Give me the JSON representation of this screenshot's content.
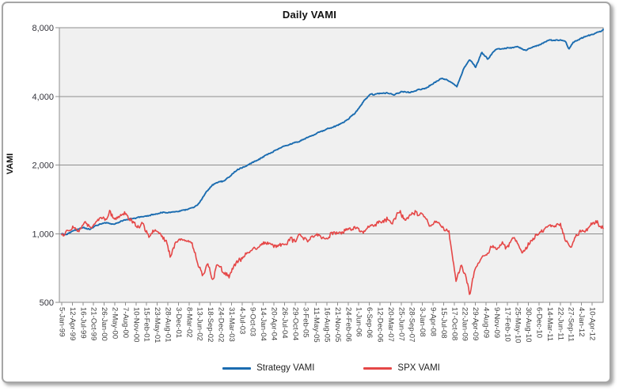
{
  "frame": {
    "background": "#ffffff",
    "border_color": "#a6a6a6"
  },
  "chart_data": {
    "type": "line",
    "title": "Daily VAMI",
    "xlabel": "",
    "ylabel": "VAMI",
    "y_scale": "log2",
    "ylim": [
      500,
      8000
    ],
    "y_ticks": [
      {
        "value": 8000,
        "label": "8,000"
      },
      {
        "value": 4000,
        "label": "4,000"
      },
      {
        "value": 2000,
        "label": "2,000"
      },
      {
        "value": 1000,
        "label": "1,000"
      },
      {
        "value": 500,
        "label": "500"
      }
    ],
    "x_tick_labels": [
      "5-Jan-99",
      "12-Apr-99",
      "16-Jul-99",
      "21-Oct-99",
      "26-Jan-00",
      "2-May-00",
      "7-Aug-00",
      "10-Nov-00",
      "15-Feb-01",
      "23-May-01",
      "28-Aug-01",
      "3-Dec-01",
      "8-Mar-02",
      "13-Jun-02",
      "18-Sep-02",
      "24-Dec-02",
      "31-Mar-03",
      "4-Jul-03",
      "9-Oct-03",
      "14-Jan-04",
      "20-Apr-04",
      "26-Jul-04",
      "29-Oct-04",
      "3-Feb-05",
      "11-May-05",
      "16-Aug-05",
      "21-Nov-05",
      "24-Feb-06",
      "1-Jun-06",
      "6-Sep-06",
      "12-Dec-06",
      "20-Mar-07",
      "25-Jun-07",
      "28-Sep-07",
      "3-Jan-08",
      "9-Apr-08",
      "15-Jul-08",
      "17-Oct-08",
      "22-Jan-09",
      "29-Apr-09",
      "4-Aug-09",
      "9-Nov-09",
      "17-Feb-10",
      "25-May-10",
      "30-Aug-10",
      "6-Dec-10",
      "14-Mar-11",
      "22-Jun-11",
      "27-Sep-11",
      "4-Jan-12",
      "10-Apr-12"
    ],
    "x_range_years": 13.55,
    "grid": "horizontal",
    "plot_background": "#f0f0f0",
    "grid_color": "#8e8e8e",
    "tick_label_color": "#414141",
    "legend_position": "bottom",
    "series": [
      {
        "name": "Strategy VAMI",
        "color": "#1b6cb0",
        "jitter": 0.013,
        "seed": 7,
        "points": [
          [
            0,
            1000
          ],
          [
            0.1,
            985
          ],
          [
            0.25,
            1020
          ],
          [
            0.4,
            1050
          ],
          [
            0.55,
            1065
          ],
          [
            0.7,
            1050
          ],
          [
            0.85,
            1085
          ],
          [
            1.0,
            1105
          ],
          [
            1.15,
            1115
          ],
          [
            1.3,
            1100
          ],
          [
            1.5,
            1135
          ],
          [
            1.7,
            1160
          ],
          [
            1.9,
            1180
          ],
          [
            2.1,
            1195
          ],
          [
            2.3,
            1215
          ],
          [
            2.5,
            1235
          ],
          [
            2.7,
            1240
          ],
          [
            2.9,
            1255
          ],
          [
            3.1,
            1275
          ],
          [
            3.3,
            1305
          ],
          [
            3.45,
            1370
          ],
          [
            3.6,
            1520
          ],
          [
            3.75,
            1620
          ],
          [
            3.9,
            1670
          ],
          [
            4.05,
            1705
          ],
          [
            4.2,
            1780
          ],
          [
            4.4,
            1915
          ],
          [
            4.66,
            2005
          ],
          [
            4.9,
            2110
          ],
          [
            5.15,
            2225
          ],
          [
            5.4,
            2335
          ],
          [
            5.65,
            2445
          ],
          [
            5.9,
            2530
          ],
          [
            6.15,
            2645
          ],
          [
            6.4,
            2760
          ],
          [
            6.65,
            2875
          ],
          [
            6.9,
            2995
          ],
          [
            7.15,
            3155
          ],
          [
            7.35,
            3400
          ],
          [
            7.55,
            3820
          ],
          [
            7.7,
            4050
          ],
          [
            7.9,
            4120
          ],
          [
            8.1,
            4150
          ],
          [
            8.3,
            4080
          ],
          [
            8.5,
            4190
          ],
          [
            8.7,
            4140
          ],
          [
            8.9,
            4260
          ],
          [
            9.1,
            4360
          ],
          [
            9.3,
            4560
          ],
          [
            9.5,
            4790
          ],
          [
            9.7,
            4680
          ],
          [
            9.88,
            4440
          ],
          [
            10.05,
            5320
          ],
          [
            10.2,
            5820
          ],
          [
            10.35,
            5380
          ],
          [
            10.5,
            6250
          ],
          [
            10.65,
            5820
          ],
          [
            10.85,
            6400
          ],
          [
            11.1,
            6480
          ],
          [
            11.4,
            6600
          ],
          [
            11.6,
            6380
          ],
          [
            11.9,
            6700
          ],
          [
            12.2,
            7040
          ],
          [
            12.45,
            7060
          ],
          [
            12.6,
            6980
          ],
          [
            12.68,
            6430
          ],
          [
            12.78,
            6920
          ],
          [
            12.95,
            7120
          ],
          [
            13.15,
            7360
          ],
          [
            13.3,
            7500
          ],
          [
            13.45,
            7700
          ],
          [
            13.55,
            7820
          ]
        ]
      },
      {
        "name": "SPX VAMI",
        "color": "#e54747",
        "jitter": 0.05,
        "seed": 13,
        "points": [
          [
            0,
            1000
          ],
          [
            0.12,
            1015
          ],
          [
            0.28,
            1075
          ],
          [
            0.42,
            1040
          ],
          [
            0.58,
            1105
          ],
          [
            0.72,
            1065
          ],
          [
            0.88,
            1140
          ],
          [
            1.0,
            1180
          ],
          [
            1.1,
            1155
          ],
          [
            1.2,
            1230
          ],
          [
            1.32,
            1140
          ],
          [
            1.45,
            1190
          ],
          [
            1.6,
            1215
          ],
          [
            1.75,
            1160
          ],
          [
            1.9,
            1085
          ],
          [
            2.02,
            1110
          ],
          [
            2.18,
            955
          ],
          [
            2.32,
            1045
          ],
          [
            2.48,
            1005
          ],
          [
            2.62,
            930
          ],
          [
            2.72,
            795
          ],
          [
            2.82,
            895
          ],
          [
            2.95,
            935
          ],
          [
            3.1,
            945
          ],
          [
            3.25,
            915
          ],
          [
            3.42,
            720
          ],
          [
            3.52,
            655
          ],
          [
            3.64,
            755
          ],
          [
            3.78,
            625
          ],
          [
            3.87,
            735
          ],
          [
            4.0,
            705
          ],
          [
            4.18,
            645
          ],
          [
            4.35,
            735
          ],
          [
            4.55,
            805
          ],
          [
            4.75,
            835
          ],
          [
            4.95,
            880
          ],
          [
            5.15,
            905
          ],
          [
            5.45,
            875
          ],
          [
            5.75,
            945
          ],
          [
            5.95,
            965
          ],
          [
            6.15,
            935
          ],
          [
            6.35,
            985
          ],
          [
            6.6,
            955
          ],
          [
            6.9,
            1010
          ],
          [
            7.2,
            1060
          ],
          [
            7.4,
            1040
          ],
          [
            7.5,
            1005
          ],
          [
            7.75,
            1090
          ],
          [
            8.0,
            1145
          ],
          [
            8.12,
            1165
          ],
          [
            8.22,
            1110
          ],
          [
            8.45,
            1240
          ],
          [
            8.6,
            1165
          ],
          [
            8.8,
            1255
          ],
          [
            8.92,
            1180
          ],
          [
            9.0,
            1215
          ],
          [
            9.2,
            1085
          ],
          [
            9.35,
            1150
          ],
          [
            9.55,
            1035
          ],
          [
            9.68,
            1000
          ],
          [
            9.77,
            775
          ],
          [
            9.86,
            615
          ],
          [
            10.0,
            725
          ],
          [
            10.1,
            665
          ],
          [
            10.2,
            548
          ],
          [
            10.35,
            705
          ],
          [
            10.5,
            785
          ],
          [
            10.7,
            855
          ],
          [
            10.9,
            885
          ],
          [
            11.02,
            915
          ],
          [
            11.12,
            875
          ],
          [
            11.32,
            975
          ],
          [
            11.5,
            835
          ],
          [
            11.65,
            885
          ],
          [
            11.85,
            965
          ],
          [
            12.1,
            1070
          ],
          [
            12.3,
            1095
          ],
          [
            12.5,
            1080
          ],
          [
            12.63,
            905
          ],
          [
            12.73,
            875
          ],
          [
            12.82,
            965
          ],
          [
            12.93,
            1005
          ],
          [
            13.08,
            1025
          ],
          [
            13.25,
            1090
          ],
          [
            13.38,
            1110
          ],
          [
            13.55,
            1065
          ]
        ]
      }
    ]
  }
}
